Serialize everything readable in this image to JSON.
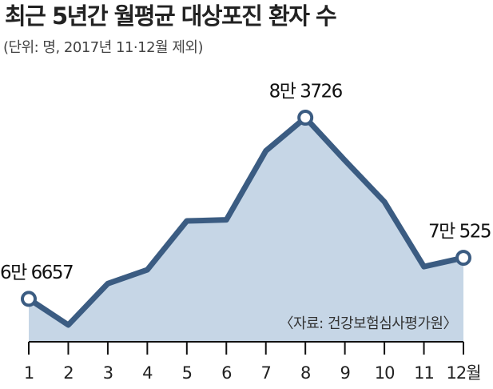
{
  "chart_data": {
    "type": "area-line",
    "title": "최근 5년간 월평균 대상포진 환자 수",
    "subtitle": "(단위: 명, 2017년 11·12월 제외)",
    "source": "〈자료: 건강보험심사평가원〉",
    "categories": [
      "1",
      "2",
      "3",
      "4",
      "5",
      "6",
      "7",
      "8",
      "9",
      "10",
      "11",
      "12월"
    ],
    "values": [
      66657,
      64200,
      68100,
      69400,
      74000,
      74100,
      80600,
      83726,
      79700,
      75800,
      69700,
      70525
    ],
    "value_labels": [
      "6만 6657",
      null,
      null,
      null,
      null,
      null,
      null,
      "8만 3726",
      null,
      null,
      null,
      "7만 525"
    ],
    "color": "#3b5c82",
    "fill": "#c6d6e6"
  }
}
